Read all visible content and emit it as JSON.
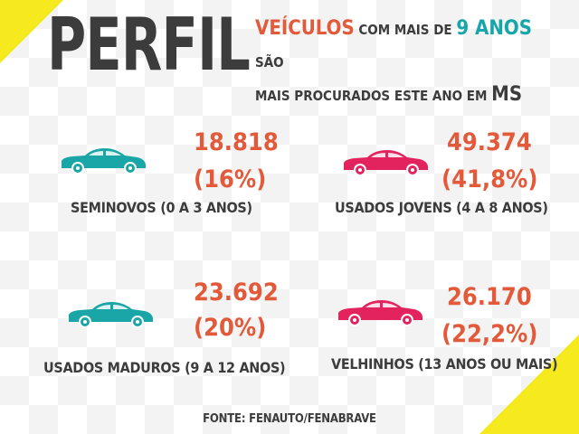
{
  "title": "PERFIL",
  "headline": {
    "part1": "VEÍCULOS",
    "part2": "COM MAIS DE",
    "part3": "9 ANOS",
    "part4": "SÃO",
    "part5": "MAIS PROCURADOS ESTE ANO EM",
    "part6": "MS"
  },
  "colors": {
    "accent_red": "#e35a3b",
    "accent_teal": "#16a5a8",
    "car_teal": "#1aa6a6",
    "car_pink": "#e2235e",
    "corner_yellow": "#f4ea1e",
    "text_dark": "#3c3c3c"
  },
  "stats": [
    {
      "value": "18.818",
      "percent": "(16%)",
      "label": "SEMINOVOS (0 A 3 ANOS)",
      "car_color": "teal",
      "icon": "car-icon"
    },
    {
      "value": "49.374",
      "percent": "(41,8%)",
      "label": "USADOS JOVENS (4 A 8 ANOS)",
      "car_color": "pink",
      "icon": "car-icon"
    },
    {
      "value": "23.692",
      "percent": "(20%)",
      "label": "USADOS MADUROS (9 A 12 ANOS)",
      "car_color": "teal",
      "icon": "car-icon"
    },
    {
      "value": "26.170",
      "percent": "(22,2%)",
      "label": "VELHINHOS (13 ANOS OU MAIS)",
      "car_color": "pink",
      "icon": "car-icon"
    }
  ],
  "source": "FONTE: FENAUTO/FENABRAVE"
}
